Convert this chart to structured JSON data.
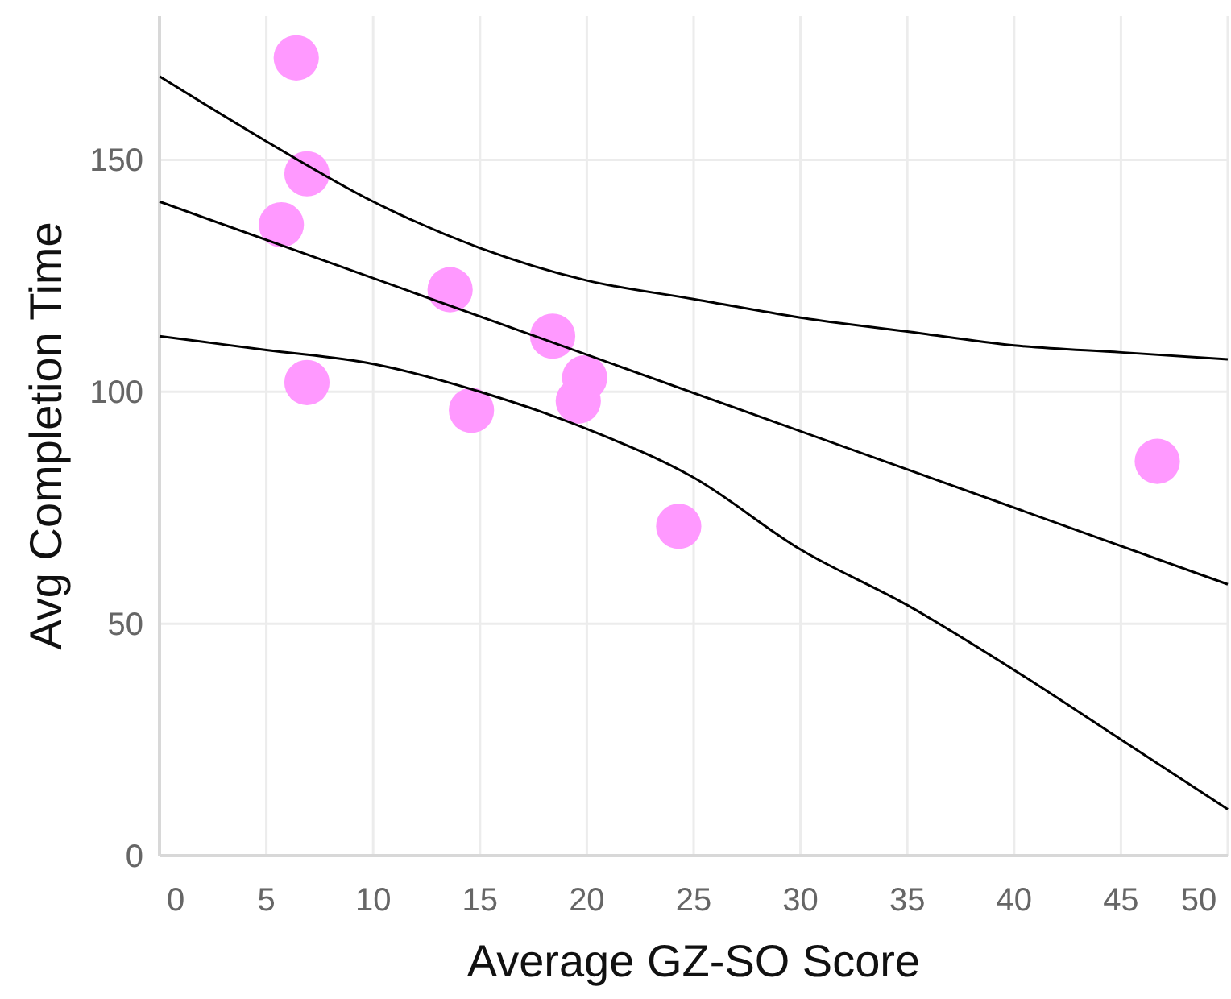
{
  "chart_data": {
    "type": "scatter",
    "xlabel": "Average GZ-SO Score",
    "ylabel": "Avg Completion Time",
    "xlim": [
      0,
      50
    ],
    "xticks": [
      0,
      5,
      10,
      15,
      20,
      25,
      30,
      35,
      40,
      45,
      50
    ],
    "ylim": [
      0,
      181
    ],
    "yticks": [
      0,
      50,
      100,
      150
    ],
    "grid": true,
    "series": [
      {
        "color": "#ff99ff",
        "marker": "circle",
        "x": [
          6.4,
          6.9,
          5.7,
          6.9,
          13.6,
          14.6,
          18.4,
          19.9,
          19.6,
          24.3,
          46.7
        ],
        "values": [
          172,
          147,
          136,
          102,
          122,
          96,
          112,
          103,
          98,
          71,
          85
        ]
      },
      {
        "type": "line",
        "color": "#000000",
        "marker": "none",
        "x": [
          0,
          5,
          10,
          15,
          20,
          25,
          30,
          35,
          40,
          45,
          50
        ],
        "values": [
          168,
          154,
          141,
          131,
          124,
          120,
          116,
          113,
          110,
          108.5,
          107
        ]
      },
      {
        "type": "line",
        "color": "#000000",
        "marker": "none",
        "x": [
          0,
          50
        ],
        "values": [
          141,
          58.5
        ]
      },
      {
        "type": "line",
        "color": "#000000",
        "marker": "none",
        "x": [
          0,
          5,
          10,
          15,
          20,
          25,
          30,
          35,
          40,
          45,
          50
        ],
        "values": [
          112,
          109,
          106,
          100,
          92,
          81.5,
          66,
          54,
          40,
          25,
          10
        ]
      }
    ]
  }
}
